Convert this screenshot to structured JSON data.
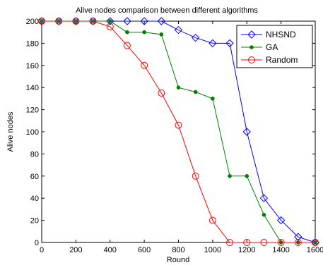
{
  "chart_data": {
    "type": "line",
    "title": "Alive nodes comparison between different algorithms",
    "xlabel": "Round",
    "ylabel": "Alive nodes",
    "xlim": [
      0,
      1600
    ],
    "ylim": [
      0,
      200
    ],
    "xticks": [
      0,
      200,
      400,
      600,
      800,
      1000,
      1200,
      1400,
      1600
    ],
    "yticks": [
      0,
      20,
      40,
      60,
      80,
      100,
      120,
      140,
      160,
      180,
      200
    ],
    "xtick_labels": [
      "0",
      "200",
      "400",
      "600",
      "800",
      "1000",
      "1200",
      "1400",
      "1600"
    ],
    "ytick_labels": [
      "0",
      "20",
      "40",
      "60",
      "80",
      "100",
      "120",
      "140",
      "160",
      "180",
      "200"
    ],
    "grid": false,
    "legend_position": "top-right",
    "x": [
      0,
      100,
      200,
      300,
      400,
      500,
      600,
      700,
      800,
      900,
      1000,
      1100,
      1200,
      1300,
      1400,
      1500,
      1600
    ],
    "series": [
      {
        "name": "NHSND",
        "color": "#0000ff",
        "marker": "diamond",
        "values": [
          200,
          200,
          200,
          200,
          200,
          200,
          200,
          200,
          192,
          185,
          180,
          180,
          100,
          40,
          20,
          5,
          0
        ]
      },
      {
        "name": "GA",
        "color": "#008000",
        "marker": "dot",
        "values": [
          200,
          200,
          200,
          200,
          200,
          190,
          190,
          188,
          140,
          136,
          130,
          60,
          60,
          25,
          0,
          0,
          0
        ]
      },
      {
        "name": "Random",
        "color": "#ff0000",
        "marker": "circle",
        "values": [
          200,
          200,
          200,
          200,
          195,
          178,
          160,
          135,
          106,
          60,
          20,
          0,
          0,
          0,
          0,
          0,
          0
        ]
      }
    ]
  }
}
